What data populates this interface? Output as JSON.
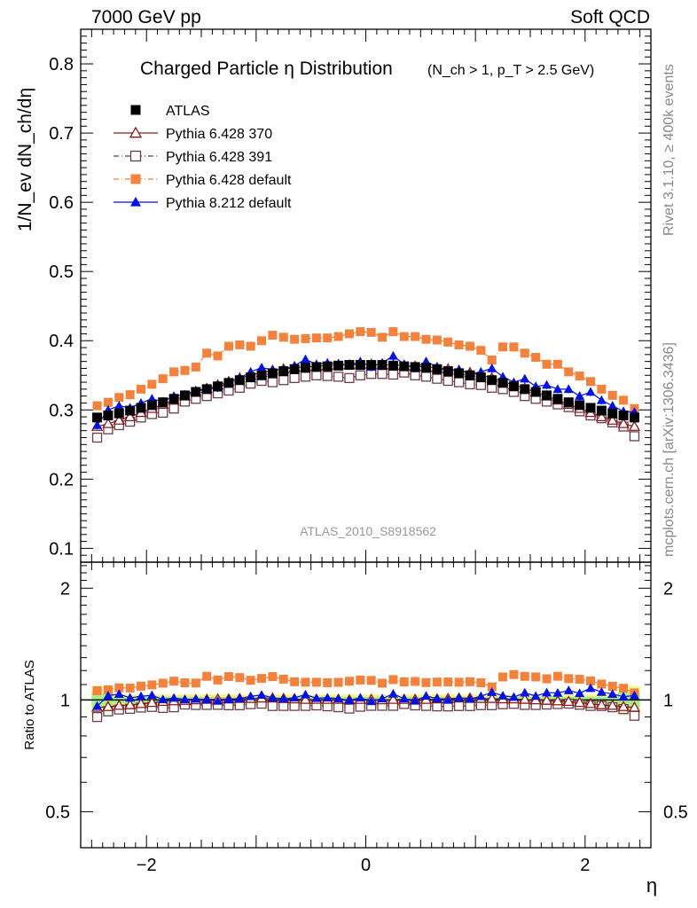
{
  "header": {
    "left": "7000 GeV pp",
    "right": "Soft QCD"
  },
  "side_labels": {
    "rivet": "Rivet 3.1.10, ≥ 400k events",
    "mcplots": "mcplots.cern.ch [arXiv:1306.3436]"
  },
  "chart_data": [
    {
      "type": "scatter",
      "panel": "main",
      "title": "Charged Particle η Distribution",
      "title_main": "Charged Particle",
      "title_eta": "η",
      "title_rest": " Distribution",
      "subtitle": "(N_ch > 1, p_T > 2.5 GeV)",
      "ylabel": "1/N_ev dN_ch/dη",
      "xlabel": "η",
      "watermark": "ATLAS_2010_S8918562",
      "ylim": [
        0.08,
        0.85
      ],
      "xlim": [
        -2.6,
        2.6
      ],
      "yticks": [
        "0.1",
        "0.2",
        "0.3",
        "0.4",
        "0.5",
        "0.6",
        "0.7",
        "0.8"
      ],
      "xticks": [
        "−2",
        "0",
        "2"
      ],
      "legend_position": "top-left",
      "x": [
        -2.45,
        -2.35,
        -2.25,
        -2.15,
        -2.05,
        -1.95,
        -1.85,
        -1.75,
        -1.65,
        -1.55,
        -1.45,
        -1.35,
        -1.25,
        -1.15,
        -1.05,
        -0.95,
        -0.85,
        -0.75,
        -0.65,
        -0.55,
        -0.45,
        -0.35,
        -0.25,
        -0.15,
        -0.05,
        0.05,
        0.15,
        0.25,
        0.35,
        0.45,
        0.55,
        0.65,
        0.75,
        0.85,
        0.95,
        1.05,
        1.15,
        1.25,
        1.35,
        1.45,
        1.55,
        1.65,
        1.75,
        1.85,
        1.95,
        2.05,
        2.15,
        2.25,
        2.35,
        2.45
      ],
      "series": [
        {
          "name": "ATLAS",
          "color": "#000000",
          "marker": "filled-square",
          "line": "none",
          "values": [
            0.289,
            0.292,
            0.295,
            0.299,
            0.303,
            0.307,
            0.311,
            0.316,
            0.321,
            0.326,
            0.33,
            0.334,
            0.339,
            0.343,
            0.347,
            0.35,
            0.353,
            0.356,
            0.359,
            0.361,
            0.362,
            0.363,
            0.364,
            0.365,
            0.365,
            0.365,
            0.365,
            0.364,
            0.363,
            0.362,
            0.361,
            0.359,
            0.356,
            0.353,
            0.35,
            0.347,
            0.343,
            0.339,
            0.334,
            0.33,
            0.326,
            0.321,
            0.316,
            0.311,
            0.307,
            0.303,
            0.299,
            0.295,
            0.292,
            0.289
          ]
        },
        {
          "name": "Pythia 6.428 370",
          "color": "#8b1a1a",
          "marker": "open-triangle",
          "line": "solid",
          "values": [
            0.276,
            0.28,
            0.285,
            0.29,
            0.296,
            0.302,
            0.308,
            0.314,
            0.32,
            0.326,
            0.331,
            0.336,
            0.341,
            0.346,
            0.35,
            0.354,
            0.357,
            0.359,
            0.361,
            0.362,
            0.363,
            0.364,
            0.365,
            0.365,
            0.366,
            0.366,
            0.365,
            0.365,
            0.364,
            0.363,
            0.362,
            0.361,
            0.359,
            0.357,
            0.354,
            0.35,
            0.346,
            0.341,
            0.336,
            0.331,
            0.326,
            0.32,
            0.314,
            0.308,
            0.302,
            0.296,
            0.29,
            0.285,
            0.28,
            0.276
          ]
        },
        {
          "name": "Pythia 6.428 391",
          "color": "#6e3c4e",
          "marker": "open-square",
          "line": "dashdot",
          "values": [
            0.26,
            0.272,
            0.278,
            0.283,
            0.289,
            0.294,
            0.296,
            0.302,
            0.312,
            0.316,
            0.32,
            0.324,
            0.328,
            0.332,
            0.338,
            0.342,
            0.34,
            0.343,
            0.346,
            0.348,
            0.35,
            0.349,
            0.348,
            0.346,
            0.35,
            0.352,
            0.352,
            0.351,
            0.354,
            0.35,
            0.348,
            0.345,
            0.342,
            0.34,
            0.337,
            0.336,
            0.332,
            0.33,
            0.326,
            0.32,
            0.316,
            0.312,
            0.308,
            0.304,
            0.298,
            0.292,
            0.288,
            0.282,
            0.276,
            0.262
          ]
        },
        {
          "name": "Pythia 6.428 default",
          "color": "#f4823c",
          "marker": "filled-square",
          "line": "dashdot",
          "values": [
            0.306,
            0.311,
            0.318,
            0.322,
            0.33,
            0.337,
            0.345,
            0.355,
            0.357,
            0.362,
            0.382,
            0.378,
            0.392,
            0.394,
            0.392,
            0.4,
            0.408,
            0.405,
            0.402,
            0.403,
            0.404,
            0.404,
            0.406,
            0.41,
            0.413,
            0.412,
            0.405,
            0.413,
            0.406,
            0.406,
            0.402,
            0.401,
            0.398,
            0.394,
            0.392,
            0.386,
            0.372,
            0.391,
            0.391,
            0.382,
            0.376,
            0.366,
            0.366,
            0.355,
            0.349,
            0.341,
            0.33,
            0.321,
            0.314,
            0.302
          ]
        },
        {
          "name": "Pythia 8.212 default",
          "color": "#0010e6",
          "marker": "filled-triangle",
          "line": "solid",
          "values": [
            0.278,
            0.3,
            0.306,
            0.303,
            0.31,
            0.316,
            0.312,
            0.32,
            0.322,
            0.328,
            0.331,
            0.332,
            0.34,
            0.346,
            0.355,
            0.361,
            0.358,
            0.358,
            0.364,
            0.373,
            0.366,
            0.368,
            0.367,
            0.364,
            0.37,
            0.362,
            0.368,
            0.378,
            0.366,
            0.36,
            0.37,
            0.362,
            0.356,
            0.358,
            0.352,
            0.355,
            0.36,
            0.348,
            0.34,
            0.345,
            0.334,
            0.336,
            0.33,
            0.33,
            0.32,
            0.326,
            0.314,
            0.306,
            0.298,
            0.297
          ]
        }
      ]
    },
    {
      "type": "scatter",
      "panel": "ratio",
      "ylabel": "Ratio to ATLAS",
      "xlabel": "η",
      "ylim": [
        0.4,
        2.35
      ],
      "yticks": [
        "0.5",
        "1",
        "2"
      ],
      "reference_line": 1,
      "uncertainty_band": {
        "colors": [
          "#f5f57a",
          "#9ff08a"
        ],
        "center": "ATLAS"
      }
    }
  ]
}
